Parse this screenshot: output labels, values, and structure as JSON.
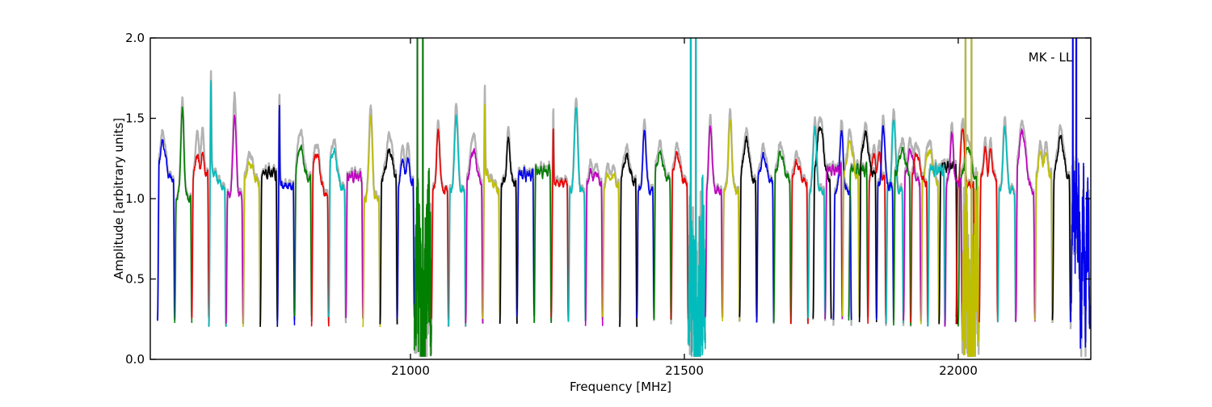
{
  "chart_data": {
    "type": "line",
    "title": "",
    "xlabel": "Frequency [MHz]",
    "ylabel": "Amplitude [arbitrary units]",
    "annotation": "MK - LL",
    "xlim": [
      20525,
      22242
    ],
    "ylim": [
      0.0,
      2.0
    ],
    "xticks": [
      21000,
      21500,
      22000
    ],
    "yticks": [
      0.0,
      0.5,
      1.0,
      1.5,
      2.0
    ],
    "xtick_labels": [
      "21000",
      "21500",
      "22000"
    ],
    "ytick_labels": [
      "0.0",
      "0.5",
      "1.0",
      "1.5",
      "2.0"
    ],
    "grid": false,
    "legend": "none",
    "description": "Bandpass amplitude spectra of ~32 MHz-wide subbands, colour-cycled b,g,r,c,m,y,k, plotted over a light-gray underlay spectrum; three RFI-corrupted subbands near 21007, 21507 and 22007 MHz and one at 22205 MHz show strong spikes off the top of the plot and deep noisy dips.",
    "baseline_floor": 0.25,
    "underlay_color": "#b3b3b3",
    "palette": {
      "b": "#0000ee",
      "g": "#007f00",
      "r": "#ee0000",
      "c": "#00bcbc",
      "m": "#bf00bf",
      "y": "#bfbf00",
      "k": "#000000"
    },
    "overlap_segments": [
      {
        "f0": 21735,
        "f1": 21768,
        "color": "k",
        "shape": "dome",
        "peak": 1.45,
        "pos": 0.4,
        "plateau": 1.12,
        "seed": 101
      },
      {
        "f0": 21772,
        "f1": 21805,
        "color": "b",
        "shape": "peak",
        "peak": 1.42,
        "pos": 0.45,
        "plateau": 1.05,
        "seed": 102
      },
      {
        "f0": 21800,
        "f1": 21835,
        "color": "g",
        "shape": "flat",
        "peak": 1.2,
        "pos": 0.5,
        "plateau": 1.18,
        "seed": 103
      },
      {
        "f0": 21835,
        "f1": 21868,
        "color": "r",
        "shape": "double",
        "peak": 1.28,
        "pos": 0.4,
        "plateau": 1.12,
        "seed": 104
      },
      {
        "f0": 21868,
        "f1": 21900,
        "color": "c",
        "shape": "peak",
        "peak": 1.5,
        "pos": 0.45,
        "plateau": 1.05,
        "seed": 105
      },
      {
        "f0": 21900,
        "f1": 21932,
        "color": "m",
        "shape": "dome",
        "peak": 1.3,
        "pos": 0.4,
        "plateau": 1.1,
        "seed": 106
      },
      {
        "f0": 21932,
        "f1": 21965,
        "color": "y",
        "shape": "dome",
        "peak": 1.3,
        "pos": 0.45,
        "plateau": 1.1,
        "seed": 107
      },
      {
        "f0": 21965,
        "f1": 21998,
        "color": "k",
        "shape": "flat",
        "peak": 1.25,
        "pos": 0.5,
        "plateau": 1.2,
        "seed": 108
      },
      {
        "f0": 21996,
        "f1": 22030,
        "color": "r",
        "shape": "peak",
        "peak": 1.45,
        "pos": 0.35,
        "plateau": 1.08,
        "seed": 109
      },
      {
        "f0": 22000,
        "f1": 22036,
        "color": "g",
        "shape": "dome",
        "peak": 1.32,
        "pos": 0.5,
        "plateau": 1.1,
        "seed": 110
      }
    ],
    "segments": [
      {
        "f0": 20538.25,
        "f1": 20569.5,
        "color": "b",
        "shape": "dome",
        "peak": 1.35,
        "pos": 0.3,
        "plateau": 1.12,
        "seed": 1
      },
      {
        "f0": 20569.5,
        "f1": 20600.75,
        "color": "g",
        "shape": "peak",
        "peak": 1.55,
        "pos": 0.45,
        "plateau": 1.0,
        "seed": 2
      },
      {
        "f0": 20600.75,
        "f1": 20632.0,
        "color": "r",
        "shape": "double",
        "peak": 1.28,
        "pos": 0.4,
        "plateau": 1.15,
        "gray": 0.15,
        "seed": 3
      },
      {
        "f0": 20632.0,
        "f1": 20663.25,
        "color": "c",
        "shape": "spikeL",
        "peak": 1.7,
        "pos": 0.12,
        "plateau": 1.16,
        "slope": -0.18,
        "seed": 4
      },
      {
        "f0": 20663.25,
        "f1": 20694.5,
        "color": "m",
        "shape": "peak",
        "peak": 1.52,
        "pos": 0.5,
        "plateau": 1.02,
        "gray": 0.14,
        "seed": 5
      },
      {
        "f0": 20694.5,
        "f1": 20725.75,
        "color": "y",
        "shape": "dome",
        "peak": 1.22,
        "pos": 0.4,
        "plateau": 1.1,
        "seed": 6
      },
      {
        "f0": 20725.75,
        "f1": 20757.0,
        "color": "k",
        "shape": "flat",
        "peak": 1.18,
        "pos": 0.5,
        "plateau": 1.16,
        "seed": 7
      },
      {
        "f0": 20757.0,
        "f1": 20788.25,
        "color": "b",
        "shape": "spikeL",
        "peak": 1.62,
        "pos": 0.12,
        "plateau": 1.08,
        "seed": 8
      },
      {
        "f0": 20788.25,
        "f1": 20819.5,
        "color": "g",
        "shape": "dome",
        "peak": 1.32,
        "pos": 0.35,
        "plateau": 1.12,
        "gray": 0.1,
        "seed": 9
      },
      {
        "f0": 20819.5,
        "f1": 20850.75,
        "color": "r",
        "shape": "dome",
        "peak": 1.28,
        "pos": 0.3,
        "plateau": 1.08,
        "slope": -0.1,
        "seed": 10
      },
      {
        "f0": 20850.75,
        "f1": 20882.0,
        "color": "c",
        "shape": "dome",
        "peak": 1.3,
        "pos": 0.3,
        "plateau": 1.1,
        "slope": -0.08,
        "seed": 11
      },
      {
        "f0": 20882.0,
        "f1": 20913.25,
        "color": "m",
        "shape": "flat",
        "peak": 1.15,
        "pos": 0.5,
        "plateau": 1.14,
        "seed": 12
      },
      {
        "f0": 20913.25,
        "f1": 20944.5,
        "color": "y",
        "shape": "peak",
        "peak": 1.52,
        "pos": 0.45,
        "plateau": 1.0,
        "seed": 13
      },
      {
        "f0": 20944.5,
        "f1": 20975.75,
        "color": "k",
        "shape": "dome",
        "peak": 1.3,
        "pos": 0.55,
        "plateau": 1.12,
        "gray": 0.1,
        "seed": 14
      },
      {
        "f0": 20975.75,
        "f1": 21007.0,
        "color": "b",
        "shape": "double",
        "peak": 1.25,
        "pos": 0.4,
        "plateau": 1.1,
        "gray": 0.1,
        "seed": 15
      },
      {
        "f0": 21007.0,
        "f1": 21038.25,
        "color": "g",
        "shape": "noisy",
        "peak": 2.8,
        "pos": 0.5,
        "plateau": 0.6,
        "spikes": [
          0.18,
          0.5
        ],
        "seed": 16
      },
      {
        "f0": 21038.25,
        "f1": 21069.5,
        "color": "r",
        "shape": "peak",
        "peak": 1.42,
        "pos": 0.4,
        "plateau": 1.05,
        "seed": 17
      },
      {
        "f0": 21069.5,
        "f1": 21100.75,
        "color": "c",
        "shape": "peak",
        "peak": 1.53,
        "pos": 0.45,
        "plateau": 1.05,
        "gray": 0.08,
        "seed": 18
      },
      {
        "f0": 21100.75,
        "f1": 21132.0,
        "color": "m",
        "shape": "dome",
        "peak": 1.3,
        "pos": 0.45,
        "plateau": 1.1,
        "gray": 0.1,
        "seed": 19
      },
      {
        "f0": 21132.0,
        "f1": 21163.25,
        "color": "y",
        "shape": "spikeL",
        "peak": 1.6,
        "pos": 0.12,
        "plateau": 1.14,
        "slope": -0.15,
        "gray": 0.1,
        "seed": 20
      },
      {
        "f0": 21163.25,
        "f1": 21194.5,
        "color": "k",
        "shape": "peak",
        "peak": 1.37,
        "pos": 0.5,
        "plateau": 1.1,
        "seed": 21
      },
      {
        "f0": 21194.5,
        "f1": 21225.75,
        "color": "b",
        "shape": "flat",
        "peak": 1.15,
        "pos": 0.5,
        "plateau": 1.15,
        "seed": 22
      },
      {
        "f0": 21225.75,
        "f1": 21257.0,
        "color": "g",
        "shape": "flat",
        "peak": 1.17,
        "pos": 0.5,
        "plateau": 1.17,
        "seed": 23
      },
      {
        "f0": 21257.0,
        "f1": 21288.25,
        "color": "r",
        "shape": "spikeL",
        "peak": 1.42,
        "pos": 0.12,
        "plateau": 1.1,
        "gray": 0.12,
        "seed": 24
      },
      {
        "f0": 21288.25,
        "f1": 21319.5,
        "color": "c",
        "shape": "peak",
        "peak": 1.58,
        "pos": 0.45,
        "plateau": 1.05,
        "gray": 0.06,
        "seed": 25
      },
      {
        "f0": 21319.5,
        "f1": 21350.75,
        "color": "m",
        "shape": "double",
        "peak": 1.17,
        "pos": 0.4,
        "plateau": 1.1,
        "seed": 26
      },
      {
        "f0": 21350.75,
        "f1": 21382.0,
        "color": "y",
        "shape": "double",
        "peak": 1.16,
        "pos": 0.4,
        "plateau": 1.08,
        "seed": 27
      },
      {
        "f0": 21382.0,
        "f1": 21413.25,
        "color": "k",
        "shape": "dome",
        "peak": 1.26,
        "pos": 0.4,
        "plateau": 1.1,
        "seed": 28
      },
      {
        "f0": 21413.25,
        "f1": 21444.5,
        "color": "b",
        "shape": "peak",
        "peak": 1.43,
        "pos": 0.45,
        "plateau": 1.05,
        "seed": 29
      },
      {
        "f0": 21444.5,
        "f1": 21475.75,
        "color": "g",
        "shape": "dome",
        "peak": 1.28,
        "pos": 0.35,
        "plateau": 1.12,
        "seed": 30
      },
      {
        "f0": 21475.75,
        "f1": 21507.0,
        "color": "r",
        "shape": "dome",
        "peak": 1.27,
        "pos": 0.35,
        "plateau": 1.1,
        "seed": 31
      },
      {
        "f0": 21507.0,
        "f1": 21538.25,
        "color": "c",
        "shape": "noisy",
        "peak": 2.8,
        "pos": 0.5,
        "plateau": 0.62,
        "spikes": [
          0.15,
          0.45
        ],
        "seed": 32
      },
      {
        "f0": 21538.25,
        "f1": 21569.5,
        "color": "m",
        "shape": "peak",
        "peak": 1.45,
        "pos": 0.3,
        "plateau": 1.05,
        "seed": 33
      },
      {
        "f0": 21569.5,
        "f1": 21600.75,
        "color": "y",
        "shape": "peak",
        "peak": 1.48,
        "pos": 0.45,
        "plateau": 1.05,
        "seed": 34
      },
      {
        "f0": 21600.75,
        "f1": 21632.0,
        "color": "k",
        "shape": "dome",
        "peak": 1.36,
        "pos": 0.4,
        "plateau": 1.1,
        "seed": 35
      },
      {
        "f0": 21632.0,
        "f1": 21663.25,
        "color": "b",
        "shape": "dome",
        "peak": 1.26,
        "pos": 0.4,
        "plateau": 1.1,
        "seed": 36
      },
      {
        "f0": 21663.25,
        "f1": 21694.5,
        "color": "g",
        "shape": "dome",
        "peak": 1.28,
        "pos": 0.4,
        "plateau": 1.12,
        "seed": 37
      },
      {
        "f0": 21694.5,
        "f1": 21725.75,
        "color": "r",
        "shape": "dome",
        "peak": 1.22,
        "pos": 0.35,
        "plateau": 1.1,
        "seed": 38
      },
      {
        "f0": 21725.75,
        "f1": 21757.0,
        "color": "c",
        "shape": "peak",
        "peak": 1.45,
        "pos": 0.4,
        "plateau": 1.05,
        "seed": 39
      },
      {
        "f0": 21757.0,
        "f1": 21788.25,
        "color": "m",
        "shape": "flat",
        "peak": 1.18,
        "pos": 0.5,
        "plateau": 1.18,
        "seed": 40
      },
      {
        "f0": 21788.25,
        "f1": 21819.5,
        "color": "y",
        "shape": "dome",
        "peak": 1.35,
        "pos": 0.45,
        "plateau": 1.12,
        "seed": 41
      },
      {
        "f0": 21819.5,
        "f1": 21850.75,
        "color": "k",
        "shape": "dome",
        "peak": 1.4,
        "pos": 0.35,
        "plateau": 1.15,
        "seed": 42
      },
      {
        "f0": 21850.75,
        "f1": 21882.0,
        "color": "b",
        "shape": "peak",
        "peak": 1.45,
        "pos": 0.4,
        "plateau": 1.08,
        "seed": 43
      },
      {
        "f0": 21882.0,
        "f1": 21913.25,
        "color": "g",
        "shape": "dome",
        "peak": 1.3,
        "pos": 0.5,
        "plateau": 1.15,
        "seed": 44
      },
      {
        "f0": 21913.25,
        "f1": 21944.5,
        "color": "r",
        "shape": "dome",
        "peak": 1.28,
        "pos": 0.35,
        "plateau": 1.1,
        "seed": 45
      },
      {
        "f0": 21944.5,
        "f1": 21975.75,
        "color": "c",
        "shape": "flat",
        "peak": 1.18,
        "pos": 0.5,
        "plateau": 1.18,
        "seed": 46
      },
      {
        "f0": 21975.75,
        "f1": 22007.0,
        "color": "m",
        "shape": "peak",
        "peak": 1.4,
        "pos": 0.4,
        "plateau": 1.1,
        "seed": 47
      },
      {
        "f0": 22007.0,
        "f1": 22038.25,
        "color": "y",
        "shape": "noisy",
        "peak": 2.8,
        "pos": 0.5,
        "plateau": 0.6,
        "spikes": [
          0.2,
          0.55
        ],
        "seed": 48
      },
      {
        "f0": 22038.25,
        "f1": 22072.0,
        "color": "r",
        "shape": "double",
        "peak": 1.3,
        "pos": 0.4,
        "plateau": 1.12,
        "seed": 49
      },
      {
        "f0": 22072.0,
        "f1": 22105.0,
        "color": "c",
        "shape": "peak",
        "peak": 1.45,
        "pos": 0.4,
        "plateau": 1.05,
        "seed": 50
      },
      {
        "f0": 22105.0,
        "f1": 22140.0,
        "color": "m",
        "shape": "dome",
        "peak": 1.42,
        "pos": 0.35,
        "plateau": 1.1,
        "slope": -0.1,
        "seed": 51
      },
      {
        "f0": 22140.0,
        "f1": 22172.0,
        "color": "y",
        "shape": "double",
        "peak": 1.3,
        "pos": 0.4,
        "plateau": 1.15,
        "seed": 52
      },
      {
        "f0": 22172.0,
        "f1": 22205.0,
        "color": "k",
        "shape": "dome",
        "peak": 1.38,
        "pos": 0.45,
        "plateau": 1.12,
        "seed": 53
      },
      {
        "f0": 22205.0,
        "f1": 22240.0,
        "color": "b",
        "shape": "noisyhi",
        "peak": 2.8,
        "pos": 0.5,
        "plateau": 0.85,
        "spikes": [
          0.12,
          0.3
        ],
        "seed": 54
      }
    ]
  }
}
